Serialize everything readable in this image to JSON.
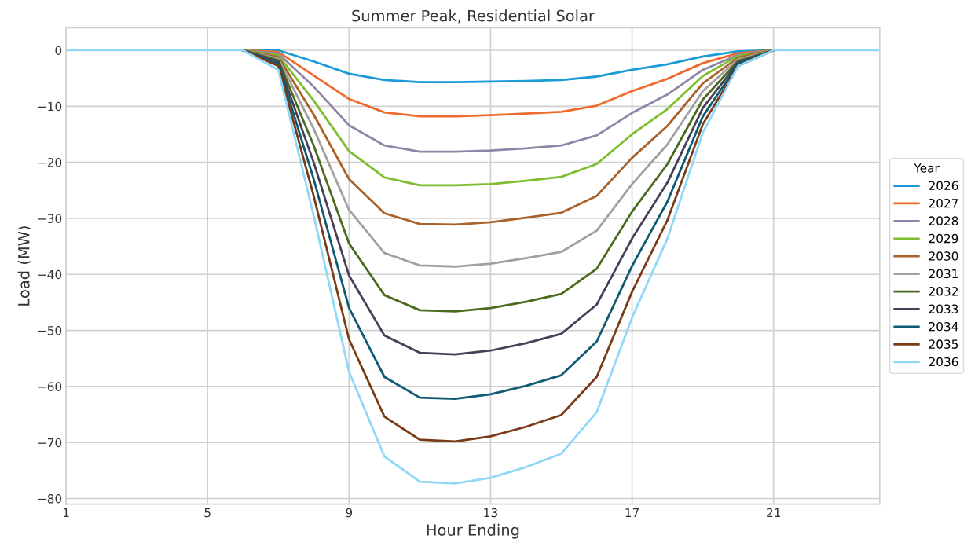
{
  "chart_data": {
    "type": "line",
    "title": "Summer Peak, Residential Solar",
    "xlabel": "Hour Ending",
    "ylabel": "Load (MW)",
    "legend_title": "Year",
    "x": [
      1,
      2,
      3,
      4,
      5,
      6,
      7,
      8,
      9,
      10,
      11,
      12,
      13,
      14,
      15,
      16,
      17,
      18,
      19,
      20,
      21,
      22,
      23,
      24
    ],
    "xlim": [
      1,
      24
    ],
    "xticks": [
      1,
      5,
      9,
      13,
      17,
      21
    ],
    "ylim": [
      -81,
      4
    ],
    "yticks": [
      {
        "value": 0,
        "label": "0"
      },
      {
        "value": -10,
        "label": "−10"
      },
      {
        "value": -20,
        "label": "−20"
      },
      {
        "value": -30,
        "label": "−30"
      },
      {
        "value": -40,
        "label": "−40"
      },
      {
        "value": -50,
        "label": "−50"
      },
      {
        "value": -60,
        "label": "−60"
      },
      {
        "value": -70,
        "label": "−70"
      },
      {
        "value": -80,
        "label": "−80"
      }
    ],
    "grid": true,
    "legend": "right",
    "marker": "none",
    "line_style": "solid",
    "series": [
      {
        "name": "2026",
        "color": "#1a9ad6",
        "values": [
          null,
          null,
          null,
          null,
          null,
          0,
          0,
          -2,
          -4.2,
          -5.3,
          -5.7,
          -5.7,
          -5.6,
          -5.5,
          -5.3,
          -4.7,
          -3.5,
          -2.5,
          -1.1,
          -0.2,
          0,
          null,
          null,
          null
        ]
      },
      {
        "name": "2027",
        "color": "#ee6b2d",
        "values": [
          null,
          null,
          null,
          null,
          null,
          0,
          -0.3,
          -4.5,
          -8.7,
          -11.1,
          -11.8,
          -11.8,
          -11.6,
          -11.3,
          -11,
          -9.9,
          -7.3,
          -5.1,
          -2.3,
          -0.5,
          0,
          null,
          null,
          null
        ]
      },
      {
        "name": "2028",
        "color": "#8e86a8",
        "values": [
          null,
          null,
          null,
          null,
          null,
          0,
          -0.6,
          -6.5,
          -13.4,
          -17,
          -18.1,
          -18.1,
          -17.9,
          -17.5,
          -17,
          -15.2,
          -11.2,
          -7.9,
          -3.5,
          -0.8,
          0,
          null,
          null,
          null
        ]
      },
      {
        "name": "2029",
        "color": "#7dbd2e",
        "values": [
          null,
          null,
          null,
          null,
          null,
          0,
          -0.9,
          -9,
          -18,
          -22.7,
          -24.1,
          -24.1,
          -23.9,
          -23.3,
          -22.6,
          -20.3,
          -15,
          -10.5,
          -4.6,
          -1,
          0,
          null,
          null,
          null
        ]
      },
      {
        "name": "2030",
        "color": "#a9612a",
        "values": [
          null,
          null,
          null,
          null,
          null,
          0,
          -1.2,
          -11.5,
          -23,
          -29.1,
          -31,
          -31.1,
          -30.7,
          -29.9,
          -29,
          -26,
          -19.2,
          -13.5,
          -5.9,
          -1.3,
          0,
          null,
          null,
          null
        ]
      },
      {
        "name": "2031",
        "color": "#a0a0a0",
        "values": [
          null,
          null,
          null,
          null,
          null,
          0,
          -1.5,
          -14,
          -28.5,
          -36.2,
          -38.4,
          -38.6,
          -38.1,
          -37.1,
          -36,
          -32.2,
          -23.9,
          -16.8,
          -7.3,
          -1.6,
          0,
          null,
          null,
          null
        ]
      },
      {
        "name": "2032",
        "color": "#4a6a1e",
        "values": [
          null,
          null,
          null,
          null,
          null,
          0,
          -1.8,
          -17,
          -34.5,
          -43.7,
          -46.4,
          -46.6,
          -46,
          -44.9,
          -43.5,
          -39,
          -28.8,
          -20.3,
          -8.8,
          -1.9,
          0,
          null,
          null,
          null
        ]
      },
      {
        "name": "2033",
        "color": "#453f58",
        "values": [
          null,
          null,
          null,
          null,
          null,
          0,
          -2.1,
          -20,
          -40.2,
          -50.9,
          -54,
          -54.3,
          -53.6,
          -52.3,
          -50.6,
          -45.4,
          -33.6,
          -23.6,
          -10.3,
          -2.2,
          0,
          null,
          null,
          null
        ]
      },
      {
        "name": "2034",
        "color": "#0f5a73",
        "values": [
          null,
          null,
          null,
          null,
          null,
          0,
          -2.5,
          -23,
          -46,
          -58.3,
          -62,
          -62.2,
          -61.4,
          -59.9,
          -58,
          -52,
          -38.5,
          -27,
          -11.8,
          -2.5,
          0,
          null,
          null,
          null
        ]
      },
      {
        "name": "2035",
        "color": "#7a3a16",
        "values": [
          null,
          null,
          null,
          null,
          null,
          0,
          -2.8,
          -26,
          -51.6,
          -65.4,
          -69.5,
          -69.8,
          -68.9,
          -67.2,
          -65.1,
          -58.3,
          -43.1,
          -30.3,
          -13.2,
          -2.8,
          0,
          null,
          null,
          null
        ]
      },
      {
        "name": "2036",
        "color": "#8fd8f7",
        "values": [
          0,
          0,
          0,
          0,
          0,
          0,
          -3.5,
          -29.5,
          -57.4,
          -72.5,
          -77,
          -77.3,
          -76.3,
          -74.4,
          -72,
          -64.6,
          -47.7,
          -33.6,
          -14.7,
          -2.8,
          0,
          0,
          0,
          0
        ]
      }
    ]
  }
}
